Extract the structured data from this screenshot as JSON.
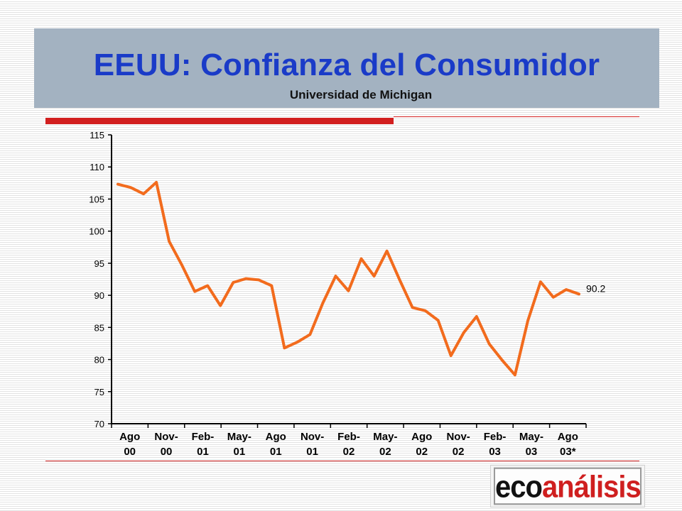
{
  "header": {
    "title": "EEUU: Confianza del Consumidor",
    "subtitle": "Universidad de Michigan"
  },
  "logo": {
    "part1": "eco",
    "part2": "análisis",
    "colors": {
      "eco": "#111111",
      "analisis": "#cf1f1f"
    }
  },
  "colors": {
    "title": "#1a3bc8",
    "header_bg": "#a3b2c1",
    "accent_red": "#d21f1f",
    "series": "#f26b1d"
  },
  "chart_data": {
    "type": "line",
    "title": "",
    "xlabel": "",
    "ylabel": "",
    "ylim": [
      70,
      115
    ],
    "yticks": [
      70,
      75,
      80,
      85,
      90,
      95,
      100,
      105,
      110,
      115
    ],
    "grid": false,
    "x_tick_labels": [
      [
        "Ago",
        "00"
      ],
      [
        "Nov-",
        "00"
      ],
      [
        "Feb-",
        "01"
      ],
      [
        "May-",
        "01"
      ],
      [
        "Ago",
        "01"
      ],
      [
        "Nov-",
        "01"
      ],
      [
        "Feb-",
        "02"
      ],
      [
        "May-",
        "02"
      ],
      [
        "Ago",
        "02"
      ],
      [
        "Nov-",
        "02"
      ],
      [
        "Feb-",
        "03"
      ],
      [
        "May-",
        "03"
      ],
      [
        "Ago",
        "03*"
      ]
    ],
    "x": [
      "2000-08",
      "2000-09",
      "2000-10",
      "2000-11",
      "2000-12",
      "2001-01",
      "2001-02",
      "2001-03",
      "2001-04",
      "2001-05",
      "2001-06",
      "2001-07",
      "2001-08",
      "2001-09",
      "2001-10",
      "2001-11",
      "2001-12",
      "2002-01",
      "2002-02",
      "2002-03",
      "2002-04",
      "2002-05",
      "2002-06",
      "2002-07",
      "2002-08",
      "2002-09",
      "2002-10",
      "2002-11",
      "2002-12",
      "2003-01",
      "2003-02",
      "2003-03",
      "2003-04",
      "2003-05",
      "2003-06",
      "2003-07",
      "2003-08"
    ],
    "series": [
      {
        "name": "",
        "values": [
          107.3,
          106.8,
          105.8,
          107.6,
          98.4,
          94.7,
          90.6,
          91.5,
          88.4,
          92.0,
          92.6,
          92.4,
          91.5,
          81.8,
          82.7,
          83.9,
          88.8,
          93.0,
          90.7,
          95.7,
          93.0,
          96.9,
          92.4,
          88.1,
          87.6,
          86.1,
          80.6,
          84.2,
          86.7,
          82.4,
          79.9,
          77.6,
          86.0,
          92.1,
          89.7,
          90.9,
          90.2
        ],
        "end_label": "90.2"
      }
    ]
  }
}
